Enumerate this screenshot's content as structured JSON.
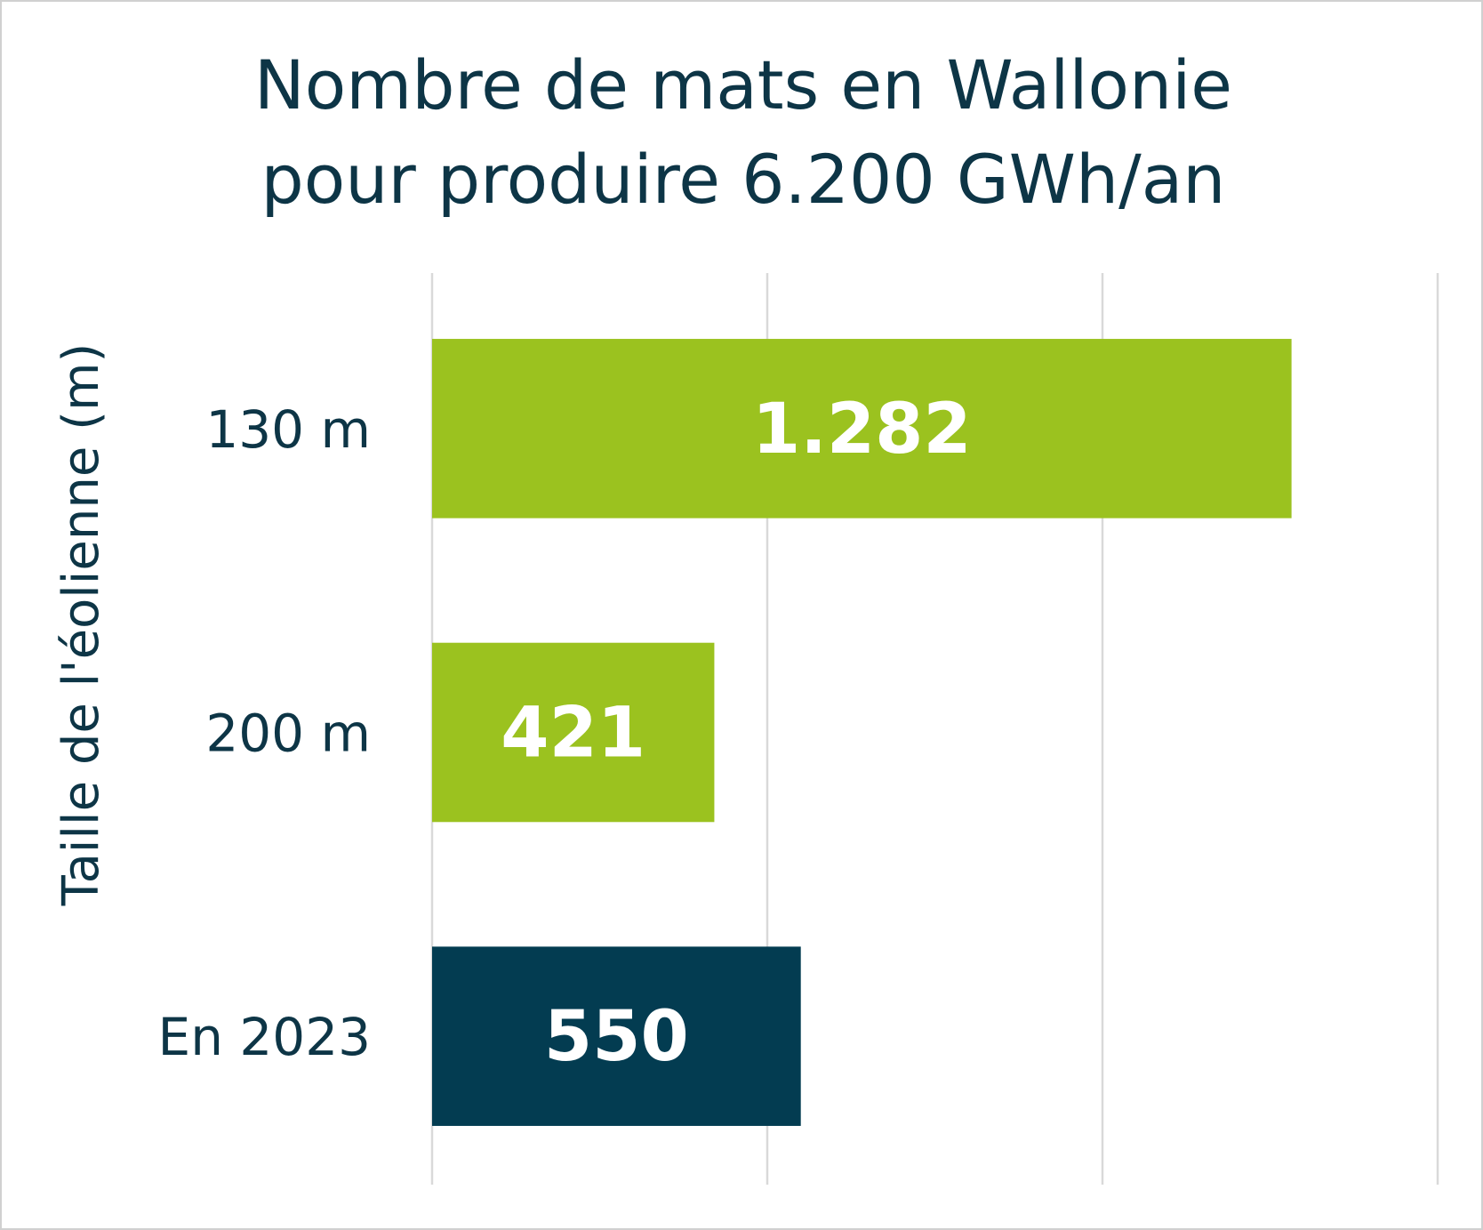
{
  "chart_data": {
    "type": "bar",
    "orientation": "horizontal",
    "title": [
      "Nombre de mats en Wallonie",
      "pour produire 6.200 GWh/an"
    ],
    "ylabel": "Taille de l'éolienne (m)",
    "xlabel": "",
    "categories": [
      "130 m",
      "200 m",
      "En 2023"
    ],
    "values": [
      1282,
      421,
      550
    ],
    "data_labels": [
      "1.282",
      "421",
      "550"
    ],
    "xlim": [
      0,
      1500
    ],
    "gridlines": [
      0,
      500,
      1000,
      1500
    ],
    "grid": true,
    "x_tick_labels_visible": false,
    "legend": "none"
  },
  "colors": {
    "bars": [
      "#9bc21f",
      "#9bc21f",
      "#033c51"
    ],
    "text": "#0d3546",
    "data_label": "#ffffff",
    "grid": "#d9d9d9",
    "frame": "#d0d0d0"
  }
}
